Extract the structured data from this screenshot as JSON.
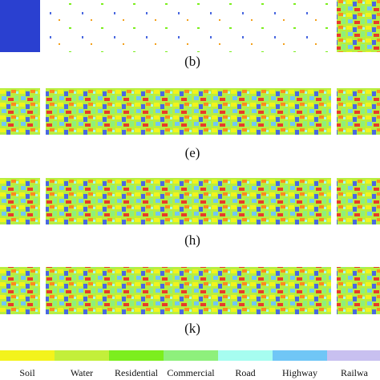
{
  "panels": [
    {
      "label": "(b)"
    },
    {
      "label": "(e)"
    },
    {
      "label": "(h)"
    },
    {
      "label": "(k)"
    }
  ],
  "legend": [
    {
      "name": "Soil",
      "color": "#f3f31c"
    },
    {
      "name": "Water",
      "color": "#c3ef3a"
    },
    {
      "name": "Residential",
      "color": "#7cee1e"
    },
    {
      "name": "Commercial",
      "color": "#8ef07c"
    },
    {
      "name": "Road",
      "color": "#a6fdf0"
    },
    {
      "name": "Highway",
      "color": "#70c6f6"
    },
    {
      "name": "Railwa",
      "color": "#c8c0f0"
    }
  ]
}
